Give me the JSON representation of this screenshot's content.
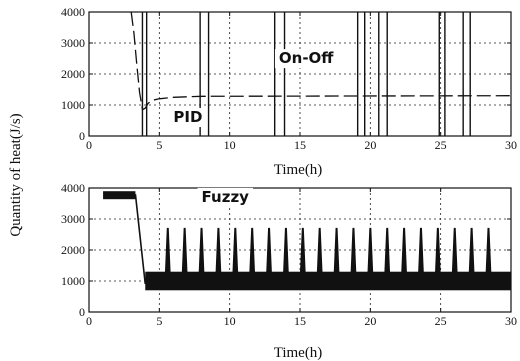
{
  "figure": {
    "ylabel": "Quantity of heat(J/s)"
  },
  "chart_data": [
    {
      "type": "line",
      "panel": "top",
      "title": "",
      "xlabel": "Time(h)",
      "ylabel": "",
      "xlim": [
        0,
        30
      ],
      "ylim": [
        0,
        4000
      ],
      "x_ticks": [
        0,
        5,
        10,
        15,
        20,
        25,
        30
      ],
      "y_ticks": [
        0,
        1000,
        2000,
        3000,
        4000
      ],
      "x_tick_labels": [
        "0",
        "5",
        "10",
        "15",
        "20",
        "25",
        "30"
      ],
      "y_tick_labels": [
        "0",
        "1000",
        "2000",
        "3000",
        "4000"
      ],
      "grid": true,
      "annotations": [
        {
          "text": "On-Off",
          "x": 13.5,
          "y": 2350
        },
        {
          "text": "PID",
          "x": 6.0,
          "y": 450
        }
      ],
      "series": [
        {
          "style": "dashed",
          "x": [
            3.0,
            3.2,
            3.4,
            3.6,
            3.8,
            4.0,
            4.2,
            4.5,
            5.0,
            6.0,
            8.0,
            30.0
          ],
          "y": [
            4000,
            3300,
            2300,
            1400,
            850,
            900,
            1050,
            1150,
            1200,
            1250,
            1280,
            1300
          ]
        },
        {
          "style": "switching",
          "x_switch_on": [
            3.8,
            4.1,
            7.9,
            8.5,
            13.2,
            13.9,
            19.1,
            19.6,
            20.6,
            21.2,
            24.9,
            25.3,
            26.6,
            27.1
          ],
          "y_on": 4000,
          "y_off": 0
        }
      ]
    },
    {
      "type": "line",
      "panel": "bottom",
      "title": "",
      "xlabel": "Time(h)",
      "ylabel": "",
      "xlim": [
        0,
        30
      ],
      "ylim": [
        0,
        4000
      ],
      "x_ticks": [
        0,
        5,
        10,
        15,
        20,
        25,
        30
      ],
      "y_ticks": [
        0,
        1000,
        2000,
        3000,
        4000
      ],
      "x_tick_labels": [
        "0",
        "5",
        "10",
        "15",
        "20",
        "25",
        "30"
      ],
      "y_tick_labels": [
        "0",
        "1000",
        "2000",
        "3000",
        "4000"
      ],
      "grid": true,
      "annotations": [
        {
          "text": "Fuzzy",
          "x": 8.0,
          "y": 3550
        }
      ],
      "series": [
        {
          "style": "solid",
          "initial": {
            "x": [
              1.0,
              3.3
            ],
            "y": [
              3800,
              3800
            ]
          },
          "drop": {
            "x": [
              3.3,
              4.0
            ],
            "y": [
              3800,
              900
            ]
          },
          "oscillation": {
            "x_start": 4.0,
            "x_end": 30.0,
            "band_low": 700,
            "band_high": 1300
          },
          "spike_x": [
            5.6,
            6.8,
            8.0,
            9.2,
            10.4,
            11.6,
            12.8,
            14.0,
            15.2,
            16.4,
            17.6,
            18.8,
            20.0,
            21.2,
            22.4,
            23.6,
            24.8,
            26.0,
            27.2,
            28.4
          ],
          "spike_peak": 2700
        }
      ]
    }
  ]
}
